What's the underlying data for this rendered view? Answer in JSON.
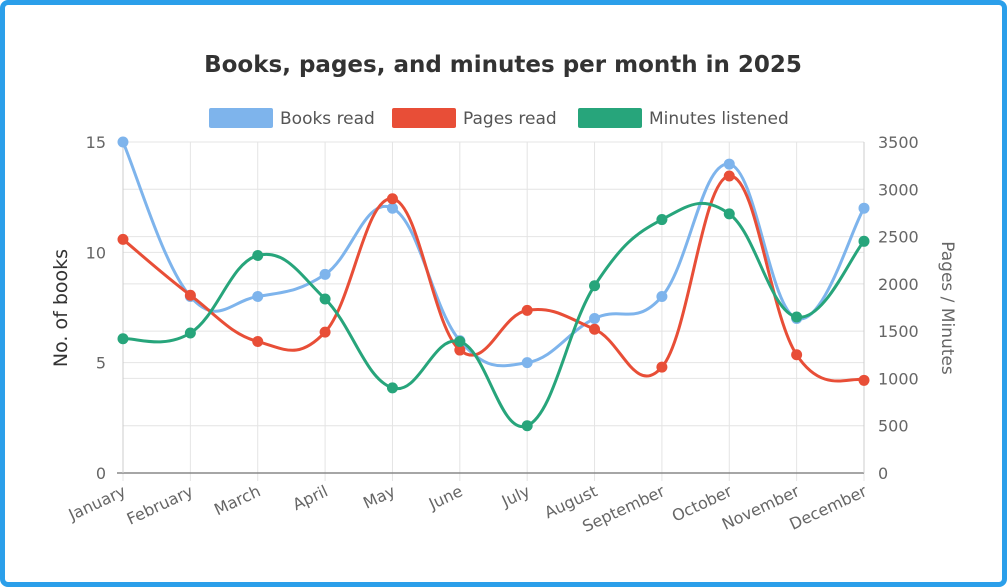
{
  "chart_data": {
    "type": "line",
    "title": "Books, pages, and minutes per month in 2025",
    "categories": [
      "January",
      "February",
      "March",
      "April",
      "May",
      "June",
      "July",
      "August",
      "September",
      "October",
      "November",
      "December"
    ],
    "y_left": {
      "label": "No. of books",
      "range": [
        0,
        15
      ],
      "ticks": [
        "0",
        "5",
        "10",
        "15"
      ]
    },
    "y_right": {
      "label": "Pages / Minutes",
      "range": [
        0,
        3500
      ],
      "ticks": [
        "0",
        "500",
        "1000",
        "1500",
        "2000",
        "2500",
        "3000",
        "3500"
      ]
    },
    "grid": true,
    "legend_position": "top",
    "series": [
      {
        "name": "Books read",
        "axis": "left",
        "color": "#7eb4ec",
        "values": [
          15,
          8,
          8,
          9,
          12,
          6,
          5,
          7,
          8,
          14,
          7,
          12
        ]
      },
      {
        "name": "Pages read",
        "axis": "right",
        "color": "#e84e37",
        "values": [
          2470,
          1880,
          1390,
          1490,
          2900,
          1300,
          1720,
          1520,
          1120,
          3140,
          1250,
          980
        ]
      },
      {
        "name": "Minutes listened",
        "axis": "right",
        "color": "#27a57b",
        "values": [
          1420,
          1480,
          2300,
          1840,
          900,
          1390,
          500,
          1980,
          2680,
          2740,
          1650,
          2450
        ]
      }
    ]
  }
}
